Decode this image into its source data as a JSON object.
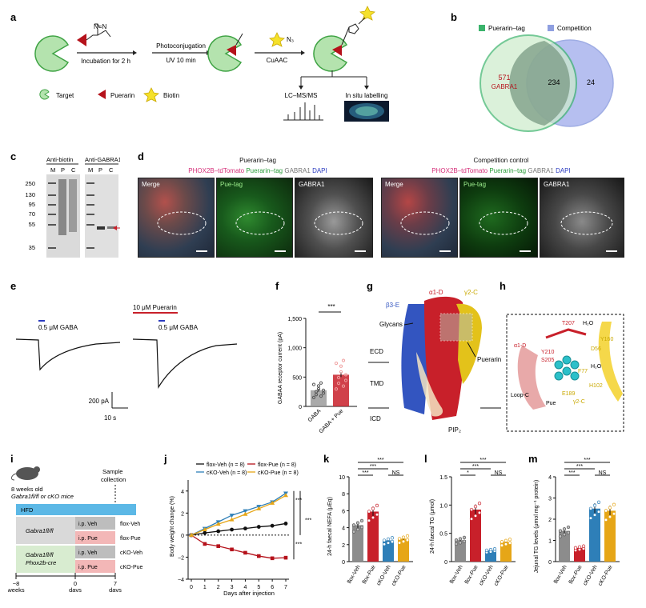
{
  "panels": {
    "a": "a",
    "b": "b",
    "c": "c",
    "d": "d",
    "e": "e",
    "f": "f",
    "g": "g",
    "h": "h",
    "i": "i",
    "j": "j",
    "k": "k",
    "l": "l",
    "m": "m"
  },
  "panel_a": {
    "step1": "Incubation for 2 h",
    "step2_top": "Photoconjugation",
    "step2_bottom": "UV 10 min",
    "step3_reagent": "N₃",
    "step3": "CuAAC",
    "branch_left": "LC–MS/MS",
    "branch_right": "In situ labelling",
    "legend": [
      "Target",
      "Puerarin",
      "Biotin"
    ],
    "colors": {
      "target": "#9ed79a",
      "puerarin": "#b5121b",
      "biotin": "#f5e12a"
    }
  },
  "panel_b": {
    "legend": [
      "Puerarin–tag",
      "Competition"
    ],
    "left_value": "571",
    "left_label": "GABRA1",
    "overlap": "234",
    "right_value": "24",
    "colors": {
      "left": "#3ab36b",
      "right": "#8f9fe0"
    }
  },
  "panel_c": {
    "header_left": "Anti-biotin",
    "header_right": "Anti-GABRA1",
    "lanes": [
      "M",
      "P",
      "C",
      "M",
      "P",
      "C"
    ],
    "markers": [
      "250",
      "130",
      "95",
      "70",
      "55",
      "35"
    ]
  },
  "panel_d": {
    "left_title": "Puerarin–tag",
    "right_title": "Competition control",
    "stain_labels": [
      "PHOX2B–tdTomato",
      "Puerarin–tag",
      "GABRA1",
      "DAPI"
    ],
    "stain_labels_right": [
      "PHOX2B–tdTomato",
      "Puerarin–tag",
      "GABRA1",
      "DAPI"
    ],
    "images": [
      "Merge",
      "Pue-tag",
      "GABRA1",
      "Merge",
      "Pue-tag",
      "GABRA1"
    ]
  },
  "panel_e": {
    "label_left": "0.5 μM GABA",
    "label_pue": "10 μM Puerarin",
    "label_right": "0.5 μM GABA",
    "scale_y": "200 pA",
    "scale_x": "10 s"
  },
  "panel_g": {
    "chain_a": "α1-D",
    "chain_g": "γ2-C",
    "chain_b": "β3-E",
    "glycans": "Glycans",
    "puerarin": "Puerarin",
    "ecd": "ECD",
    "tmd": "TMD",
    "icd": "ICD",
    "pip": "PIP₂"
  },
  "panel_h": {
    "labels": [
      "α1-D",
      "T207",
      "H₂O",
      "Y160",
      "D56",
      "Y210",
      "S205",
      "F77",
      "H₂O",
      "H102",
      "E189",
      "Loop-C",
      "Pue",
      "γ2-C"
    ]
  },
  "panel_i": {
    "mouse_line1": "8 weeks old",
    "mouse_line2": "Gabra1fl/fl or cKO mice",
    "sample1": "Sample",
    "sample2": "collection",
    "hfd": "HFD",
    "group1": "Gabra1fl/fl",
    "group2a": "Gabra1fl/fl",
    "group2b": "Phox2b-cre",
    "treat": [
      "i.p. Veh",
      "i.p. Pue",
      "i.p. Veh",
      "i.p. Pue"
    ],
    "groups": [
      "flox-Veh",
      "flox-Pue",
      "cKO-Veh",
      "cKO-Pue"
    ],
    "ticks": [
      "−8",
      "0",
      "7"
    ],
    "tick_units": [
      "weeks",
      "days",
      "days"
    ]
  },
  "chart_data": [
    {
      "type": "bar",
      "panel": "f",
      "ylabel": "GABAA receptor current (pA)",
      "categories": [
        "GABA",
        "GABA + Pue"
      ],
      "values": [
        275,
        540
      ],
      "errors": [
        25,
        40
      ],
      "ylim": [
        0,
        1500
      ],
      "yticks": [
        "0",
        "500",
        "1,000",
        "1,500"
      ],
      "significance": "***",
      "colors": [
        "#9b9b9b",
        "#c8202a"
      ]
    },
    {
      "type": "line",
      "panel": "j",
      "xlabel": "Days after injection",
      "ylabel": "Body weight change (%)",
      "x": [
        0,
        1,
        2,
        3,
        4,
        5,
        6,
        7
      ],
      "ylim": [
        -4,
        5
      ],
      "yticks": [
        "−4",
        "−2",
        "0",
        "2",
        "4"
      ],
      "series": [
        {
          "name": "flox-Veh (n = 8)",
          "values": [
            0,
            0.2,
            0.35,
            0.5,
            0.6,
            0.75,
            0.85,
            1.05
          ],
          "color": "#111111",
          "marker": "circle"
        },
        {
          "name": "flox-Pue (n = 8)",
          "values": [
            0,
            -0.8,
            -1.0,
            -1.3,
            -1.6,
            -1.9,
            -2.1,
            -2.05
          ],
          "color": "#b5121b",
          "marker": "square"
        },
        {
          "name": "cKO-Veh (n = 8)",
          "values": [
            0,
            0.6,
            1.2,
            1.8,
            2.2,
            2.6,
            3.0,
            3.8
          ],
          "color": "#2e7fb8",
          "marker": "triangle-down"
        },
        {
          "name": "cKO-Pue (n = 8)",
          "values": [
            0,
            0.5,
            1.0,
            1.4,
            1.9,
            2.4,
            2.9,
            3.6
          ],
          "color": "#e6a617",
          "marker": "triangle-up"
        }
      ],
      "significance": [
        "***",
        "***",
        "***"
      ]
    },
    {
      "type": "bar",
      "panel": "k",
      "ylabel": "24-h faecal NEFA (μEq)",
      "categories": [
        "flox-Veh",
        "flox-Pue",
        "cKO-Veh",
        "cKO-Pue"
      ],
      "values": [
        4.3,
        5.9,
        2.5,
        2.7
      ],
      "ylim": [
        0,
        10
      ],
      "yticks": [
        "0",
        "2",
        "4",
        "6",
        "8",
        "10"
      ],
      "significance": [
        "***",
        "***",
        "***",
        "NS"
      ]
    },
    {
      "type": "bar",
      "panel": "l",
      "ylabel": "24-h faecal TG (μmol)",
      "categories": [
        "flox-Veh",
        "flox-Pue",
        "cKO-Veh",
        "cKO-Pue"
      ],
      "values": [
        0.38,
        0.92,
        0.2,
        0.35
      ],
      "ylim": [
        0,
        1.5
      ],
      "yticks": [
        "0",
        "0.5",
        "1.0",
        "1.5"
      ],
      "significance": [
        "***",
        "*",
        "***",
        "NS"
      ]
    },
    {
      "type": "bar",
      "panel": "m",
      "ylabel": "Jejunal TG levels (μmol mg⁻¹ protein)",
      "categories": [
        "flox-Veh",
        "flox-Pue",
        "cKO-Veh",
        "cKO-Pue"
      ],
      "values": [
        1.45,
        0.65,
        2.5,
        2.4
      ],
      "ylim": [
        0,
        4
      ],
      "yticks": [
        "0",
        "1",
        "2",
        "3",
        "4"
      ],
      "significance": [
        "***",
        "***",
        "***",
        "NS"
      ]
    }
  ],
  "group_colors": [
    "#8c8c8c",
    "#c8202a",
    "#2e7fb8",
    "#e6a617"
  ]
}
